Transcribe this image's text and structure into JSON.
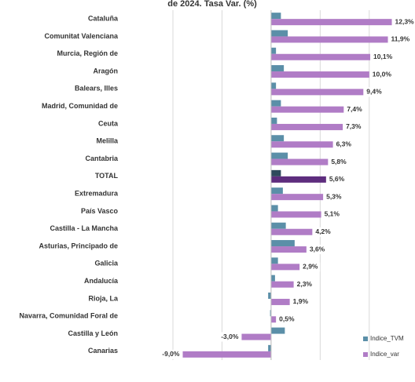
{
  "chart_data": {
    "type": "hbar",
    "title": "de 2024. Tasa Var. (%)",
    "categories": [
      "Cataluña",
      "Comunitat Valenciana",
      "Murcia, Región de",
      "Aragón",
      "Balears, Illes",
      "Madrid, Comunidad de",
      "Ceuta",
      "Melilla",
      "Cantabria",
      "TOTAL",
      "Extremadura",
      "País Vasco",
      "Castilla - La Mancha",
      "Asturias, Principado de",
      "Galicia",
      "Andalucía",
      "Rioja, La",
      "Navarra, Comunidad Foral de",
      "Castilla y León",
      "Canarias"
    ],
    "series": [
      {
        "name": "Indice_TVM",
        "color": "#5b8fa8",
        "highlight_color": "#2e4a5c",
        "values": [
          1.0,
          1.7,
          0.5,
          1.3,
          0.5,
          1.0,
          0.6,
          1.3,
          1.7,
          1.0,
          1.2,
          0.7,
          1.5,
          2.4,
          0.7,
          0.4,
          -0.3,
          -0.1,
          1.4,
          -0.3
        ]
      },
      {
        "name": "Indice_var",
        "color": "#b07cc6",
        "highlight_color": "#5e2d7e",
        "values": [
          12.3,
          11.9,
          10.1,
          10.0,
          9.4,
          7.4,
          7.3,
          6.3,
          5.8,
          5.6,
          5.3,
          5.1,
          4.2,
          3.6,
          2.9,
          2.3,
          1.9,
          0.5,
          -3.0,
          -9.0
        ],
        "value_labels": [
          "12,3%",
          "11,9%",
          "10,1%",
          "10,0%",
          "9,4%",
          "7,4%",
          "7,3%",
          "6,3%",
          "5,8%",
          "5,6%",
          "5,3%",
          "5,1%",
          "4,2%",
          "3,6%",
          "2,9%",
          "2,3%",
          "1,9%",
          "0,5%",
          "-3,0%",
          "-9,0%"
        ]
      }
    ],
    "highlight": "TOTAL",
    "xlim": [
      -10,
      14.5
    ],
    "xticks": [
      -10,
      -5,
      0,
      5,
      10
    ],
    "grid": true,
    "legend": "lower right"
  }
}
